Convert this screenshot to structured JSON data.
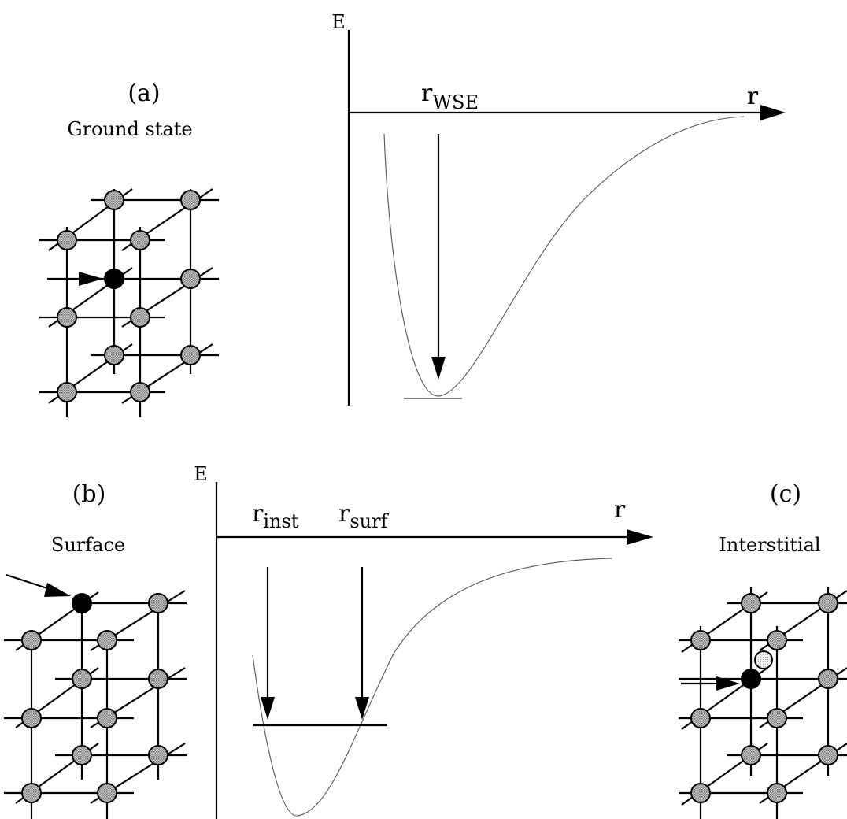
{
  "panel_a": {
    "label": "(a)",
    "caption": "Ground state",
    "axis_e": "E",
    "axis_r": "r",
    "marker": {
      "main": "r",
      "sub": "WSE"
    }
  },
  "panel_b": {
    "label": "(b)",
    "caption": "Surface",
    "axis_e": "E",
    "axis_r": "r",
    "marker_inst": {
      "main": "r",
      "sub": "inst"
    },
    "marker_surf": {
      "main": "r",
      "sub": "surf"
    }
  },
  "panel_c": {
    "label": "(c)",
    "caption": "Interstitial"
  },
  "colors": {
    "atom_fill": "#a9a9a9",
    "special_atom": "#000000",
    "interstitial_atom": "#e8e8e8",
    "curve": "#555555"
  }
}
